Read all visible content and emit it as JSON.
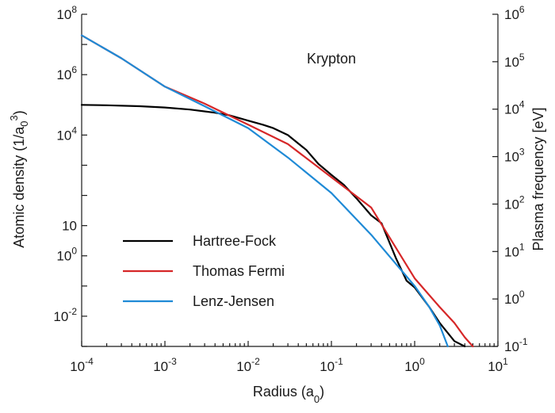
{
  "chart_data": {
    "type": "line",
    "annotation": "Krypton",
    "xlabel": "Radius (a0)",
    "ylabel_left": "Atomic density (1/a0^3)",
    "ylabel_right": "Plasma frequency [eV]",
    "x_scale": "log",
    "y_scale": "log",
    "xlim": [
      0.0001,
      10
    ],
    "ylim_left": [
      0.001,
      100000000
    ],
    "ylim_right": [
      0.1,
      1000000
    ],
    "grid": false,
    "legend_position": "lower-left",
    "x_ticks": [
      {
        "base": "10",
        "exp": "-4"
      },
      {
        "base": "10",
        "exp": "-3"
      },
      {
        "base": "10",
        "exp": "-2"
      },
      {
        "base": "10",
        "exp": "-1"
      },
      {
        "base": "10",
        "exp": "0"
      },
      {
        "base": "10",
        "exp": "1"
      }
    ],
    "y_left_ticks": [
      {
        "value": 0.01,
        "base": "10",
        "exp": "-2"
      },
      {
        "value": 1,
        "base": "10",
        "exp": "0"
      },
      {
        "value": 10,
        "base": "10",
        "exp": ""
      },
      {
        "value": 10000,
        "base": "10",
        "exp": "4"
      },
      {
        "value": 1000000,
        "base": "10",
        "exp": "6"
      },
      {
        "value": 100000000,
        "base": "10",
        "exp": "8"
      }
    ],
    "y_right_ticks": [
      {
        "value": 0.1,
        "base": "10",
        "exp": "-1"
      },
      {
        "value": 1,
        "base": "10",
        "exp": "0"
      },
      {
        "value": 10,
        "base": "10",
        "exp": "1"
      },
      {
        "value": 100,
        "base": "10",
        "exp": "2"
      },
      {
        "value": 1000,
        "base": "10",
        "exp": "3"
      },
      {
        "value": 10000,
        "base": "10",
        "exp": "4"
      },
      {
        "value": 100000,
        "base": "10",
        "exp": "5"
      },
      {
        "value": 1000000,
        "base": "10",
        "exp": "6"
      }
    ],
    "series": [
      {
        "name": "Hartree-Fock",
        "color": "#000000",
        "x": [
          0.0001,
          0.0002,
          0.0005,
          0.001,
          0.002,
          0.004,
          0.006,
          0.01,
          0.015,
          0.02,
          0.03,
          0.05,
          0.07,
          0.1,
          0.14,
          0.2,
          0.3,
          0.4,
          0.6,
          0.8,
          1.0,
          1.5,
          2.0,
          3.0,
          4.0
        ],
        "y": [
          100000,
          97000,
          90000,
          82000,
          70000,
          55000,
          45000,
          30000,
          22000,
          17000,
          10000,
          3200,
          1100,
          480,
          230,
          80,
          22,
          12,
          0.8,
          0.15,
          0.09,
          0.02,
          0.006,
          0.0015,
          0.001
        ]
      },
      {
        "name": "Thomas Fermi",
        "color": "#d62728",
        "x": [
          0.0001,
          0.0003,
          0.001,
          0.003,
          0.01,
          0.03,
          0.1,
          0.3,
          1.0,
          2.0,
          3.0,
          4.0,
          5.0
        ],
        "y": [
          20000000,
          3500000,
          400000,
          110000,
          22000,
          5000,
          400,
          40,
          0.18,
          0.02,
          0.006,
          0.002,
          0.001
        ]
      },
      {
        "name": "Lenz-Jensen",
        "color": "#1f8ad6",
        "x": [
          0.0001,
          0.0003,
          0.001,
          0.003,
          0.01,
          0.03,
          0.1,
          0.3,
          1.0,
          1.5,
          2.0,
          2.5
        ],
        "y": [
          20000000,
          3500000,
          400000,
          90000,
          17000,
          1800,
          120,
          5,
          0.1,
          0.02,
          0.005,
          0.001
        ]
      }
    ]
  }
}
